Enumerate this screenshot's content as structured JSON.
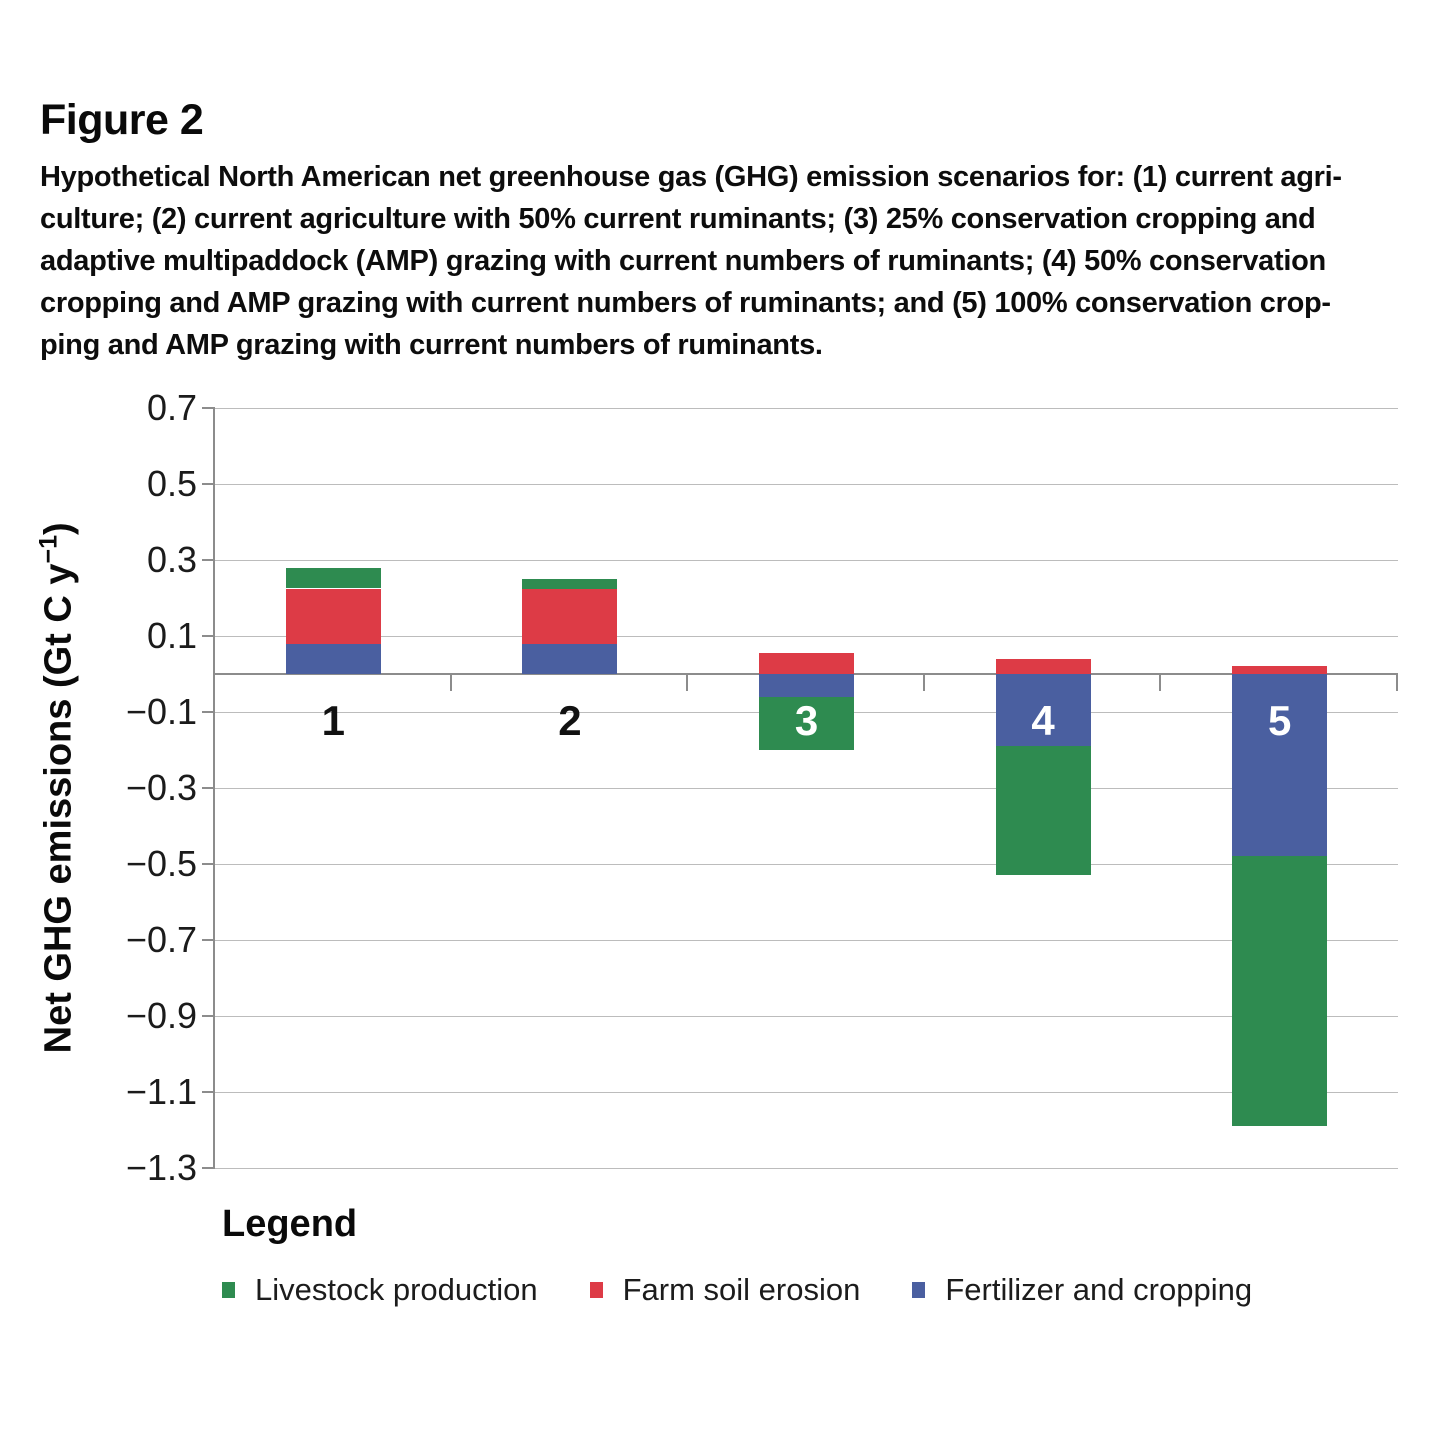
{
  "figure": {
    "label": "Figure 2",
    "caption_lines": [
      "Hypothetical North American net greenhouse gas (GHG) emission scenarios for: (1) current agri-",
      "culture; (2) current agriculture with 50% current ruminants; (3) 25% conservation cropping and",
      "adaptive multipaddock (AMP) grazing with current numbers of ruminants; (4) 50% conservation",
      "cropping and AMP grazing with current numbers of ruminants; and (5) 100% conservation crop-",
      "ping and AMP grazing with current numbers of ruminants."
    ]
  },
  "chart_data": {
    "type": "bar",
    "stacked": true,
    "categories": [
      "1",
      "2",
      "3",
      "4",
      "5"
    ],
    "series": [
      {
        "name": "Fertilizer and cropping",
        "color": "#4a5fa0",
        "values": [
          0.08,
          0.08,
          -0.06,
          -0.19,
          -0.48
        ]
      },
      {
        "name": "Farm soil erosion",
        "color": "#dd3b46",
        "values": [
          0.145,
          0.145,
          0.055,
          0.04,
          0.02
        ]
      },
      {
        "name": "Livestock production",
        "color": "#2e8b50",
        "values": [
          0.055,
          0.025,
          -0.14,
          -0.34,
          -0.71
        ]
      }
    ],
    "ylabel": {
      "prefix": "Net GHG emissions (Gt C y",
      "sup": "−1",
      "suffix": ")"
    },
    "yticks": [
      0.7,
      0.5,
      0.3,
      0.1,
      -0.1,
      -0.3,
      -0.5,
      -0.7,
      -0.9,
      -1.1,
      -1.3
    ],
    "ylim": [
      -1.3,
      0.7
    ],
    "grid": true,
    "legend_position": "bottom"
  },
  "legend": {
    "title": "Legend",
    "items": [
      {
        "label": "Livestock production",
        "color": "#2e8b50"
      },
      {
        "label": "Farm soil erosion",
        "color": "#dd3b46"
      },
      {
        "label": "Fertilizer and cropping",
        "color": "#4a5fa0"
      }
    ]
  },
  "colors": {
    "gridline": "#bcbcbc",
    "axis": "#8c8c8c",
    "text": "#0d0d0d",
    "bar_label_light": "#ffffff",
    "bar_label_dark": "#111111"
  }
}
